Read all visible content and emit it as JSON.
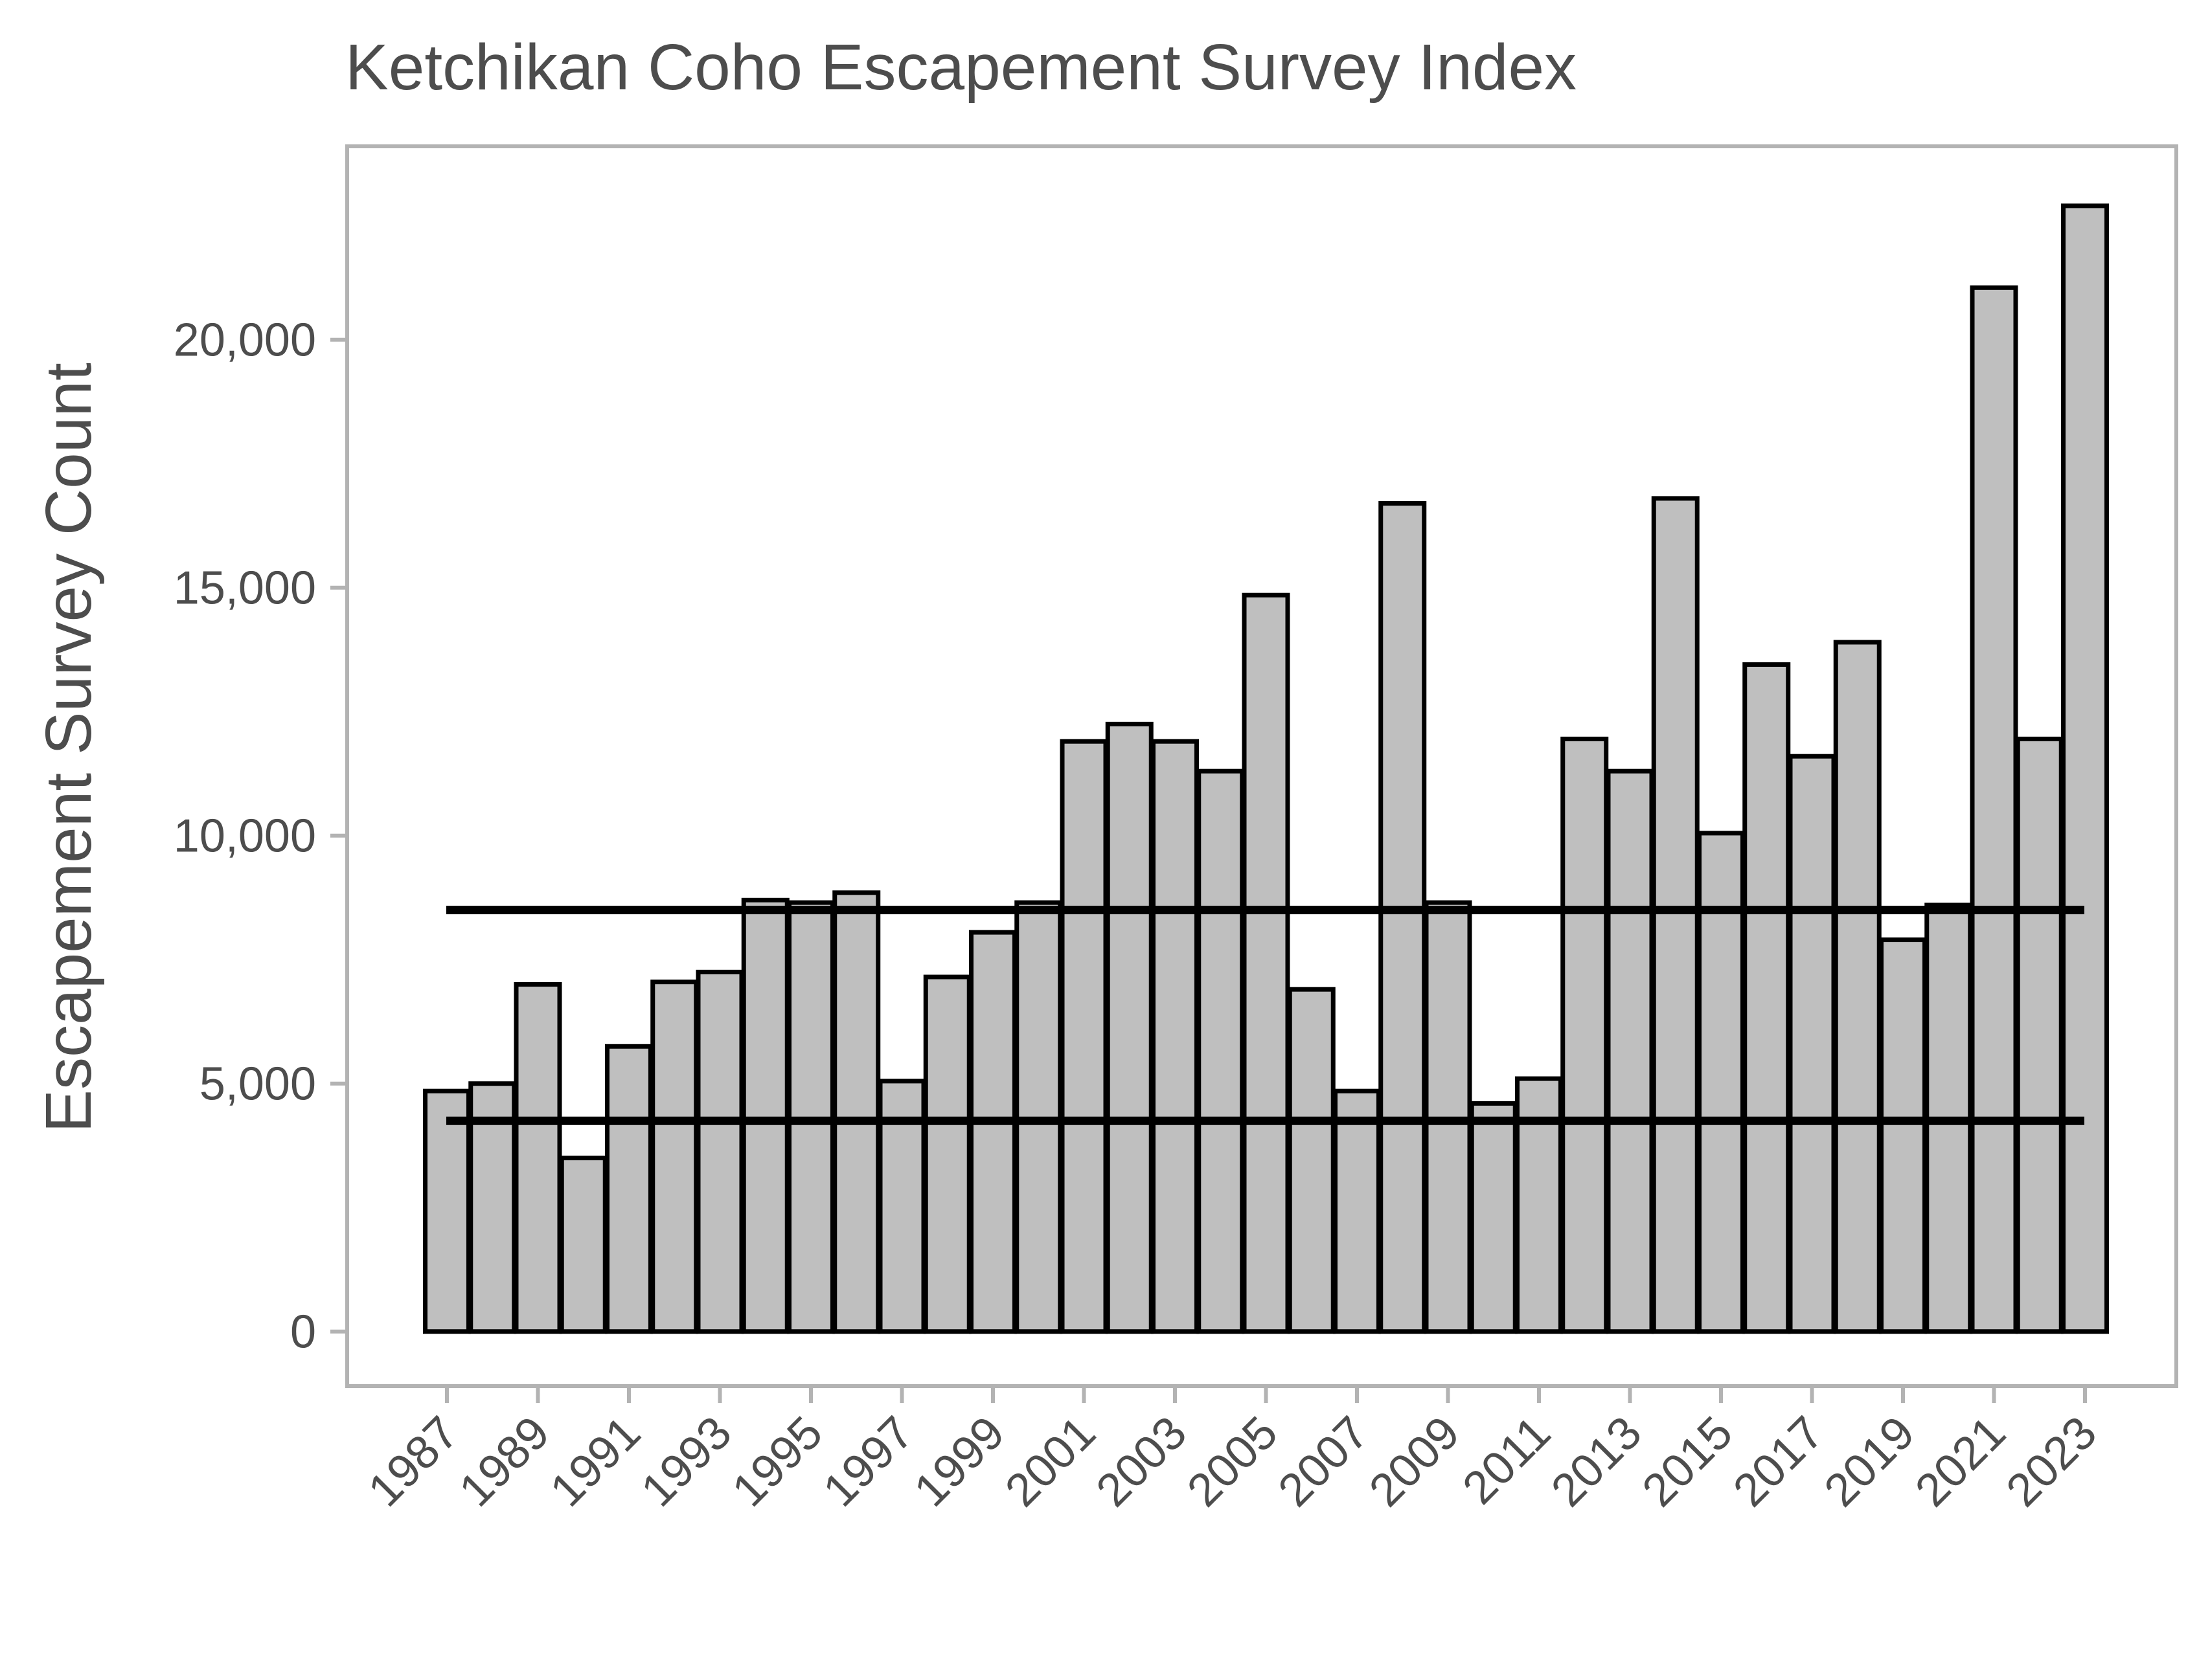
{
  "chart_data": {
    "type": "bar",
    "title": "Ketchikan Coho Escapement Survey Index",
    "xlabel": "",
    "ylabel": "Escapement Survey Count",
    "categories": [
      "1987",
      "1988",
      "1989",
      "1990",
      "1991",
      "1992",
      "1993",
      "1994",
      "1995",
      "1996",
      "1997",
      "1998",
      "1999",
      "2000",
      "2001",
      "2002",
      "2003",
      "2004",
      "2005",
      "2006",
      "2007",
      "2008",
      "2009",
      "2010",
      "2011",
      "2012",
      "2013",
      "2014",
      "2015",
      "2016",
      "2017",
      "2018",
      "2019",
      "2020",
      "2021",
      "2022",
      "2023"
    ],
    "values": [
      4850,
      5000,
      7000,
      3500,
      5750,
      7050,
      7250,
      8700,
      8650,
      8850,
      5050,
      7150,
      8050,
      8650,
      11900,
      12250,
      11900,
      11300,
      14850,
      6900,
      4850,
      16700,
      8650,
      4600,
      5100,
      11950,
      11300,
      16800,
      10050,
      13450,
      11600,
      13900,
      7900,
      8600,
      21050,
      11950,
      22700
    ],
    "tick_labels": [
      "1987",
      "1989",
      "1991",
      "1993",
      "1995",
      "1997",
      "1999",
      "2001",
      "2003",
      "2005",
      "2007",
      "2009",
      "2011",
      "2013",
      "2015",
      "2017",
      "2019",
      "2021",
      "2023"
    ],
    "ylim": [
      -1100,
      23900
    ],
    "yticks": [
      0,
      5000,
      10000,
      15000,
      20000
    ],
    "ytick_labels": [
      "0",
      "5,000",
      "10,000",
      "15,000",
      "20,000"
    ],
    "reference_lines": [
      8500,
      4250
    ],
    "grid": false,
    "colors": {
      "bar_fill": "#bfbfbf",
      "bar_stroke": "#000000",
      "line": "#000000",
      "frame": "#b3b3b3",
      "text": "#4d4d4d"
    }
  }
}
